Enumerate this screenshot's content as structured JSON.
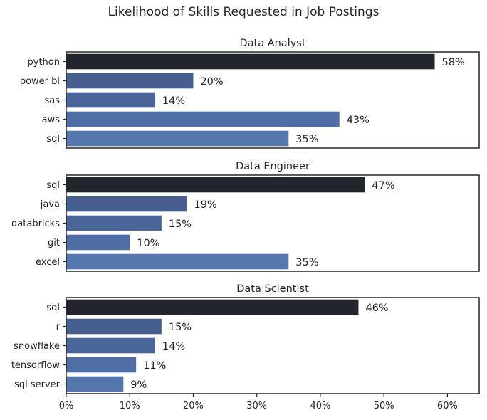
{
  "title": "Likelihood of Skills Requested in Job Postings",
  "colors": {
    "bar_top": "#22252b",
    "bar_shades": [
      "#22252b",
      "#465f8f",
      "#4a6598",
      "#506ea6",
      "#5677ad"
    ],
    "axis": "#262626",
    "background": "#ffffff"
  },
  "chart_data": [
    {
      "type": "bar",
      "orientation": "horizontal",
      "title": "Data Analyst",
      "categories": [
        "python",
        "power bi",
        "sas",
        "aws",
        "sql"
      ],
      "values": [
        58,
        20,
        14,
        43,
        35
      ],
      "value_labels": [
        "58%",
        "20%",
        "14%",
        "43%",
        "35%"
      ],
      "xlim": [
        0,
        65
      ]
    },
    {
      "type": "bar",
      "orientation": "horizontal",
      "title": "Data Engineer",
      "categories": [
        "sql",
        "java",
        "databricks",
        "git",
        "excel"
      ],
      "values": [
        47,
        19,
        15,
        10,
        35
      ],
      "value_labels": [
        "47%",
        "19%",
        "15%",
        "10%",
        "35%"
      ],
      "xlim": [
        0,
        65
      ]
    },
    {
      "type": "bar",
      "orientation": "horizontal",
      "title": "Data Scientist",
      "categories": [
        "sql",
        "r",
        "snowflake",
        "tensorflow",
        "sql server"
      ],
      "values": [
        46,
        15,
        14,
        11,
        9
      ],
      "value_labels": [
        "46%",
        "15%",
        "14%",
        "11%",
        "9%"
      ],
      "xlim": [
        0,
        65
      ]
    }
  ],
  "x_axis": {
    "ticks": [
      0,
      10,
      20,
      30,
      40,
      50,
      60
    ],
    "tick_labels": [
      "0%",
      "10%",
      "20%",
      "30%",
      "40%",
      "50%",
      "60%"
    ]
  }
}
